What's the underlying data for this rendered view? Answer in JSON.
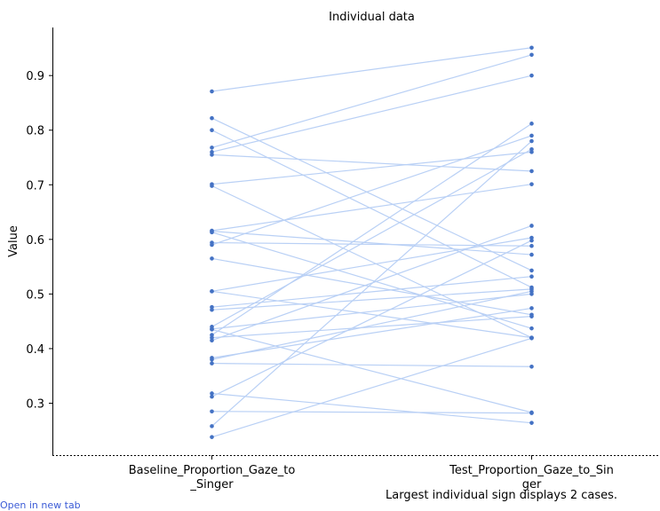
{
  "chart_data": {
    "type": "line",
    "title": "Individual data",
    "ylabel": "Value",
    "xlabel": "",
    "categories": [
      "Baseline_Proportion_Gaze_to_Singer",
      "Test_Proportion_Gaze_to_Singer"
    ],
    "category_label_lines": [
      [
        "Baseline_Proportion_Gaze_to",
        "_Singer"
      ],
      [
        "Test_Proportion_Gaze_to_Sin",
        "ger"
      ]
    ],
    "ylim": [
      0.205,
      0.988
    ],
    "yticks": [
      0.3,
      0.4,
      0.5,
      0.6,
      0.7,
      0.8,
      0.9
    ],
    "ytick_labels": [
      "0.3",
      "0.4",
      "0.5",
      "0.6",
      "0.7",
      "0.8",
      "0.9"
    ],
    "colors": {
      "line": "#b9d0f5",
      "point": "#4472c4"
    },
    "series": [
      {
        "values": [
          0.871,
          0.951
        ]
      },
      {
        "values": [
          0.822,
          0.543
        ]
      },
      {
        "values": [
          0.8,
          0.512
        ]
      },
      {
        "values": [
          0.768,
          0.938
        ]
      },
      {
        "values": [
          0.76,
          0.9
        ]
      },
      {
        "values": [
          0.755,
          0.725
        ]
      },
      {
        "values": [
          0.701,
          0.76
        ]
      },
      {
        "values": [
          0.698,
          0.42
        ]
      },
      {
        "values": [
          0.616,
          0.701
        ]
      },
      {
        "values": [
          0.615,
          0.572
        ]
      },
      {
        "values": [
          0.594,
          0.588
        ]
      },
      {
        "values": [
          0.59,
          0.79
        ]
      },
      {
        "values": [
          0.565,
          0.462
        ]
      },
      {
        "values": [
          0.505,
          0.603
        ]
      },
      {
        "values": [
          0.505,
          0.42
        ]
      },
      {
        "values": [
          0.476,
          0.532
        ]
      },
      {
        "values": [
          0.471,
          0.509
        ]
      },
      {
        "values": [
          0.44,
          0.765
        ]
      },
      {
        "values": [
          0.436,
          0.5
        ]
      },
      {
        "values": [
          0.425,
          0.812
        ]
      },
      {
        "values": [
          0.42,
          0.459
        ]
      },
      {
        "values": [
          0.415,
          0.625
        ]
      },
      {
        "values": [
          0.38,
          0.505
        ]
      },
      {
        "values": [
          0.383,
          0.474
        ]
      },
      {
        "values": [
          0.373,
          0.367
        ]
      },
      {
        "values": [
          0.318,
          0.264
        ]
      },
      {
        "values": [
          0.312,
          0.598
        ]
      },
      {
        "values": [
          0.285,
          0.282
        ]
      },
      {
        "values": [
          0.258,
          0.78
        ]
      },
      {
        "values": [
          0.238,
          0.419
        ]
      },
      {
        "values": [
          0.435,
          0.283
        ]
      },
      {
        "values": [
          0.613,
          0.437
        ]
      }
    ]
  },
  "footnote": "Largest individual sign displays 2 cases.",
  "corner_text": "Open in new tab"
}
